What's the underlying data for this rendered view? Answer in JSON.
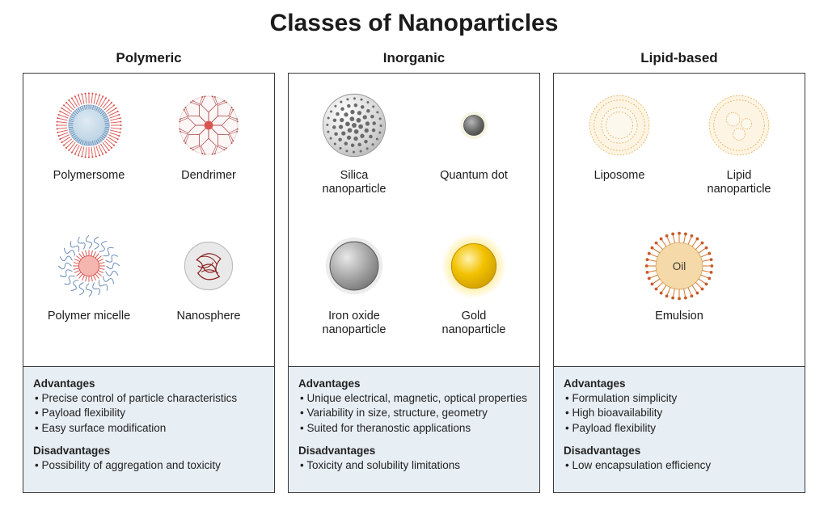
{
  "title": "Classes of Nanoparticles",
  "colors": {
    "bg": "#ffffff",
    "border": "#3a3a3a",
    "infobox_bg": "#e7eef4",
    "text": "#1b1b1b",
    "red": "#d9534f",
    "darkred": "#8b1a1a",
    "lightblue": "#b7d0e2",
    "midblue": "#5a7fb0",
    "gray": "#9a9a9a",
    "darkgray": "#5c5c5c",
    "gold": "#f2c200",
    "gold_glow": "#ffe98a",
    "peach": "#f6d9a8",
    "peach_border": "#e9b45f",
    "orange_dot": "#d77b3a"
  },
  "columns": [
    {
      "title": "Polymeric",
      "particles": [
        {
          "label": "Polymersome",
          "icon": "polymersome"
        },
        {
          "label": "Dendrimer",
          "icon": "dendrimer"
        },
        {
          "label": "Polymer micelle",
          "icon": "micelle"
        },
        {
          "label": "Nanosphere",
          "icon": "nanosphere"
        }
      ],
      "advantages_heading": "Advantages",
      "advantages": [
        "Precise control of particle characteristics",
        "Payload flexibility",
        "Easy surface modification"
      ],
      "disadvantages_heading": "Disadvantages",
      "disadvantages": [
        "Possibility of aggregation and toxicity"
      ]
    },
    {
      "title": "Inorganic",
      "particles": [
        {
          "label": "Silica\nnanoparticle",
          "icon": "silica"
        },
        {
          "label": "Quantum dot",
          "icon": "qdot"
        },
        {
          "label": "Iron oxide\nnanoparticle",
          "icon": "ironoxide"
        },
        {
          "label": "Gold\nnanoparticle",
          "icon": "gold"
        }
      ],
      "advantages_heading": "Advantages",
      "advantages": [
        "Unique electrical, magnetic, optical properties",
        "Variability in size, structure, geometry",
        "Suited for theranostic applications"
      ],
      "disadvantages_heading": "Disadvantages",
      "disadvantages": [
        "Toxicity and solubility limitations"
      ]
    },
    {
      "title": "Lipid-based",
      "particles": [
        {
          "label": "Liposome",
          "icon": "liposome"
        },
        {
          "label": "Lipid\nnanoparticle",
          "icon": "lipidnp"
        },
        {
          "label": "Emulsion",
          "icon": "emulsion",
          "inner_text": "Oil"
        }
      ],
      "advantages_heading": "Advantages",
      "advantages": [
        "Formulation simplicity",
        "High bioavailability",
        "Payload flexibility"
      ],
      "disadvantages_heading": "Disadvantages",
      "disadvantages": [
        "Low encapsulation efficiency"
      ]
    }
  ]
}
